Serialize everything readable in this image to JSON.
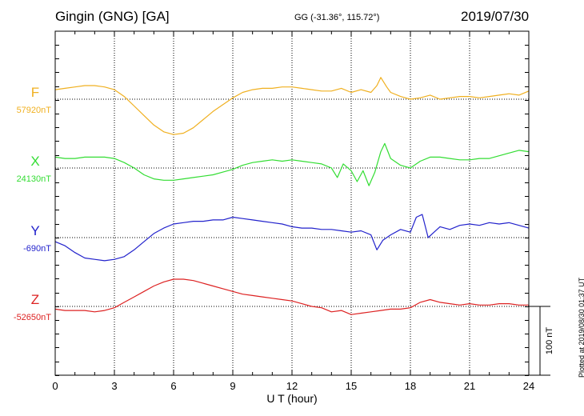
{
  "header": {
    "title": "Gingin (GNG)  [GA]",
    "coords": "GG (-31.36°, 115.72°)",
    "date": "2019/07/30",
    "plotted": "Plotted at 2019/08/30 01:37 UT"
  },
  "chart_data": {
    "type": "line",
    "title": "Gingin (GNG)  [GA]",
    "xlabel": "U T (hour)",
    "xlim": [
      0,
      24
    ],
    "xticks": [
      0,
      3,
      6,
      9,
      12,
      15,
      18,
      21,
      24
    ],
    "xtick_labels": [
      "0",
      "3",
      "6",
      "9",
      "12",
      "15",
      "18",
      "21",
      "24"
    ],
    "grid": true,
    "scale_bar": {
      "label": "100 nT",
      "value_nT": 100
    },
    "series": [
      {
        "name": "F",
        "baseline_label": "57920nT",
        "baseline_nT": 57920,
        "color": "#f0b020",
        "x": [
          0,
          0.5,
          1,
          1.5,
          2,
          2.5,
          3,
          3.5,
          4,
          4.5,
          5,
          5.5,
          6,
          6.5,
          7,
          7.5,
          8,
          8.5,
          9,
          9.5,
          10,
          10.5,
          11,
          11.5,
          12,
          12.5,
          13,
          13.5,
          14,
          14.5,
          15,
          15.5,
          16,
          16.3,
          16.5,
          16.8,
          17,
          17.5,
          18,
          18.5,
          19,
          19.5,
          20,
          20.5,
          21,
          21.5,
          22,
          22.5,
          23,
          23.5,
          24
        ],
        "values": [
          57927,
          57928,
          57929,
          57930,
          57930,
          57929,
          57927,
          57922,
          57915,
          57908,
          57901,
          57896,
          57894,
          57895,
          57899,
          57905,
          57911,
          57916,
          57921,
          57925,
          57927,
          57928,
          57928,
          57929,
          57929,
          57928,
          57927,
          57926,
          57926,
          57928,
          57925,
          57927,
          57925,
          57930,
          57936,
          57929,
          57925,
          57922,
          57920,
          57921,
          57923,
          57920,
          57921,
          57922,
          57922,
          57921,
          57922,
          57923,
          57924,
          57923,
          57926
        ]
      },
      {
        "name": "X",
        "baseline_label": "24130nT",
        "baseline_nT": 24130,
        "color": "#33dd33",
        "x": [
          0,
          0.5,
          1,
          1.5,
          2,
          2.5,
          3,
          3.5,
          4,
          4.5,
          5,
          5.5,
          6,
          6.5,
          7,
          7.5,
          8,
          8.5,
          9,
          9.5,
          10,
          10.5,
          11,
          11.5,
          12,
          12.5,
          13,
          13.5,
          14,
          14.3,
          14.6,
          15,
          15.3,
          15.6,
          15.9,
          16.2,
          16.5,
          16.7,
          17,
          17.5,
          18,
          18.5,
          19,
          19.5,
          20,
          20.5,
          21,
          21.5,
          22,
          22.5,
          23,
          23.5,
          24
        ],
        "values": [
          24138,
          24137,
          24137,
          24138,
          24138,
          24138,
          24137,
          24134,
          24130,
          24125,
          24122,
          24121,
          24121,
          24122,
          24123,
          24124,
          24125,
          24127,
          24129,
          24132,
          24134,
          24135,
          24136,
          24135,
          24136,
          24135,
          24134,
          24133,
          24130,
          24123,
          24133,
          24128,
          24120,
          24128,
          24117,
          24127,
          24142,
          24148,
          24137,
          24132,
          24130,
          24135,
          24138,
          24138,
          24137,
          24136,
          24136,
          24137,
          24137,
          24139,
          24141,
          24143,
          24142
        ]
      },
      {
        "name": "Y",
        "baseline_label": "-690nT",
        "baseline_nT": -690,
        "color": "#2222cc",
        "x": [
          0,
          0.5,
          1,
          1.5,
          2,
          2.5,
          3,
          3.5,
          4,
          4.5,
          5,
          5.5,
          6,
          6.5,
          7,
          7.5,
          8,
          8.5,
          9,
          9.5,
          10,
          10.5,
          11,
          11.5,
          12,
          12.5,
          13,
          13.5,
          14,
          14.5,
          15,
          15.5,
          16,
          16.3,
          16.6,
          17,
          17.5,
          18,
          18.3,
          18.6,
          18.9,
          19.2,
          19.5,
          20,
          20.5,
          21,
          21.5,
          22,
          22.5,
          23,
          23.5,
          24
        ],
        "values": [
          -693,
          -696,
          -701,
          -705,
          -706,
          -707,
          -706,
          -704,
          -699,
          -693,
          -687,
          -683,
          -680,
          -679,
          -678,
          -678,
          -677,
          -677,
          -675,
          -676,
          -677,
          -678,
          -679,
          -680,
          -682,
          -683,
          -683,
          -684,
          -684,
          -685,
          -686,
          -685,
          -688,
          -699,
          -692,
          -688,
          -684,
          -686,
          -675,
          -673,
          -690,
          -686,
          -682,
          -684,
          -681,
          -680,
          -681,
          -679,
          -680,
          -679,
          -681,
          -683
        ]
      },
      {
        "name": "Z",
        "baseline_label": "-52650nT",
        "baseline_nT": -52650,
        "color": "#dd2222",
        "x": [
          0,
          0.5,
          1,
          1.5,
          2,
          2.5,
          3,
          3.5,
          4,
          4.5,
          5,
          5.5,
          6,
          6.5,
          7,
          7.5,
          8,
          8.5,
          9,
          9.5,
          10,
          10.5,
          11,
          11.5,
          12,
          12.5,
          13,
          13.5,
          14,
          14.5,
          15,
          15.5,
          16,
          16.5,
          17,
          17.5,
          18,
          18.5,
          19,
          19.5,
          20,
          20.5,
          21,
          21.5,
          22,
          22.5,
          23,
          23.5,
          24
        ],
        "values": [
          -52652,
          -52653,
          -52653,
          -52653,
          -52654,
          -52653,
          -52651,
          -52647,
          -52643,
          -52639,
          -52635,
          -52632,
          -52630,
          -52630,
          -52631,
          -52633,
          -52635,
          -52637,
          -52639,
          -52641,
          -52642,
          -52643,
          -52644,
          -52645,
          -52646,
          -52648,
          -52650,
          -52651,
          -52654,
          -52653,
          -52656,
          -52655,
          -52654,
          -52653,
          -52652,
          -52652,
          -52651,
          -52647,
          -52645,
          -52647,
          -52648,
          -52649,
          -52648,
          -52649,
          -52649,
          -52648,
          -52648,
          -52649,
          -52649
        ]
      }
    ]
  }
}
